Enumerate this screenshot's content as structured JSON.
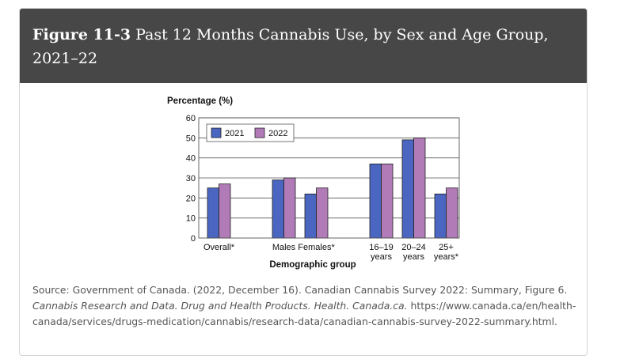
{
  "figure": {
    "label": "Figure  11-3",
    "title": "Past 12 Months Cannabis Use, by Sex and Age Group, 2021–22"
  },
  "chart_data": {
    "type": "bar",
    "ylabel": "Percentage (%)",
    "xlabel": "Demographic group",
    "ylim": [
      0,
      60
    ],
    "yticks": [
      0,
      10,
      20,
      30,
      40,
      50,
      60
    ],
    "grid": true,
    "legend_position": "top-left",
    "categories": [
      {
        "label": [
          "Overall*"
        ],
        "group": 0
      },
      {
        "label": [
          "Males"
        ],
        "group": 1
      },
      {
        "label": [
          "Females*"
        ],
        "group": 1
      },
      {
        "label": [
          "16–19",
          "years"
        ],
        "group": 2
      },
      {
        "label": [
          "20–24",
          "years"
        ],
        "group": 2
      },
      {
        "label": [
          "25+",
          "years*"
        ],
        "group": 2
      }
    ],
    "series": [
      {
        "name": "2021",
        "color": "#4a66c0",
        "values": [
          25,
          29,
          22,
          37,
          49,
          22
        ]
      },
      {
        "name": "2022",
        "color": "#b07bb7",
        "values": [
          27,
          30,
          25,
          37,
          50,
          25
        ]
      }
    ]
  },
  "source": {
    "text1": "Source: Government of Canada. (2022, December 16). Canadian Cannabis Survey 2022: Summary, Figure 6.",
    "italic": "Cannabis Research and Data. Drug and Health Products. Health. Canada.ca.",
    "text2": " https://www.canada.ca/en/health-canada/services/drugs-medication/cannabis/research-data/canadian-cannabis-survey-2022-summary.html."
  }
}
